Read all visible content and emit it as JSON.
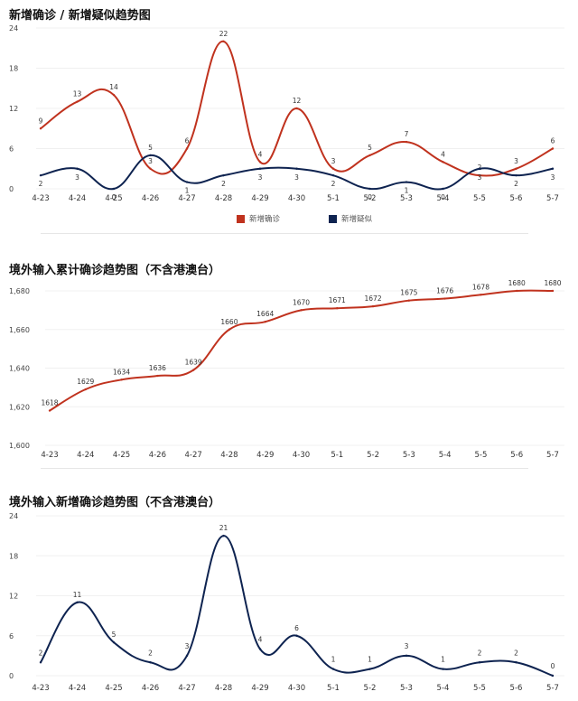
{
  "panels": [
    {
      "title": "新增确诊 / 新增疑似趋势图"
    },
    {
      "title": "境外输入累计确诊趋势图（不含港澳台）"
    },
    {
      "title": "境外输入新增确诊趋势图（不含港澳台）"
    }
  ],
  "legend": [
    {
      "label": "新增确诊",
      "color": "#c0321e"
    },
    {
      "label": "新增疑似",
      "color": "#0e2350"
    }
  ],
  "chart_data": [
    {
      "type": "line",
      "title": "新增确诊 / 新增疑似趋势图",
      "categories": [
        "4-23",
        "4-24",
        "4-25",
        "4-26",
        "4-27",
        "4-28",
        "4-29",
        "4-30",
        "5-1",
        "5-2",
        "5-3",
        "5-4",
        "5-5",
        "5-6",
        "5-7"
      ],
      "ylim": [
        0,
        24
      ],
      "yticks": [
        0,
        6,
        12,
        18,
        24
      ],
      "ytick_labels": [
        "0",
        "6",
        "12",
        "18",
        "24"
      ],
      "grid": true,
      "legend_position": "bottom",
      "series": [
        {
          "name": "新增确诊",
          "color": "#c0321e",
          "values": [
            9,
            13,
            14,
            3,
            6,
            22,
            4,
            12,
            3,
            5,
            7,
            4,
            2,
            3,
            6
          ]
        },
        {
          "name": "新增疑似",
          "color": "#0e2350",
          "values": [
            2,
            3,
            0,
            5,
            1,
            2,
            3,
            3,
            2,
            0,
            1,
            0,
            3,
            2,
            3
          ]
        }
      ]
    },
    {
      "type": "line",
      "title": "境外输入累计确诊趋势图（不含港澳台）",
      "categories": [
        "4-23",
        "4-24",
        "4-25",
        "4-26",
        "4-27",
        "4-28",
        "4-29",
        "4-30",
        "5-1",
        "5-2",
        "5-3",
        "5-4",
        "5-5",
        "5-6",
        "5-7"
      ],
      "ylim": [
        1600,
        1680
      ],
      "yticks": [
        1600,
        1620,
        1640,
        1660,
        1680
      ],
      "ytick_labels": [
        "1,600",
        "1,620",
        "1,640",
        "1,660",
        "1,680"
      ],
      "grid": true,
      "series": [
        {
          "name": "",
          "color": "#c0321e",
          "values": [
            1618,
            1629,
            1634,
            1636,
            1639,
            1660,
            1664,
            1670,
            1671,
            1672,
            1675,
            1676,
            1678,
            1680,
            1680
          ]
        }
      ]
    },
    {
      "type": "line",
      "title": "境外输入新增确诊趋势图（不含港澳台）",
      "categories": [
        "4-23",
        "4-24",
        "4-25",
        "4-26",
        "4-27",
        "4-28",
        "4-29",
        "4-30",
        "5-1",
        "5-2",
        "5-3",
        "5-4",
        "5-5",
        "5-6",
        "5-7"
      ],
      "ylim": [
        0,
        24
      ],
      "yticks": [
        0,
        6,
        12,
        18,
        24
      ],
      "ytick_labels": [
        "0",
        "6",
        "12",
        "18",
        "24"
      ],
      "grid": true,
      "series": [
        {
          "name": "",
          "color": "#0e2350",
          "values": [
            2,
            11,
            5,
            2,
            3,
            21,
            4,
            6,
            1,
            1,
            3,
            1,
            2,
            2,
            0
          ]
        }
      ]
    }
  ]
}
